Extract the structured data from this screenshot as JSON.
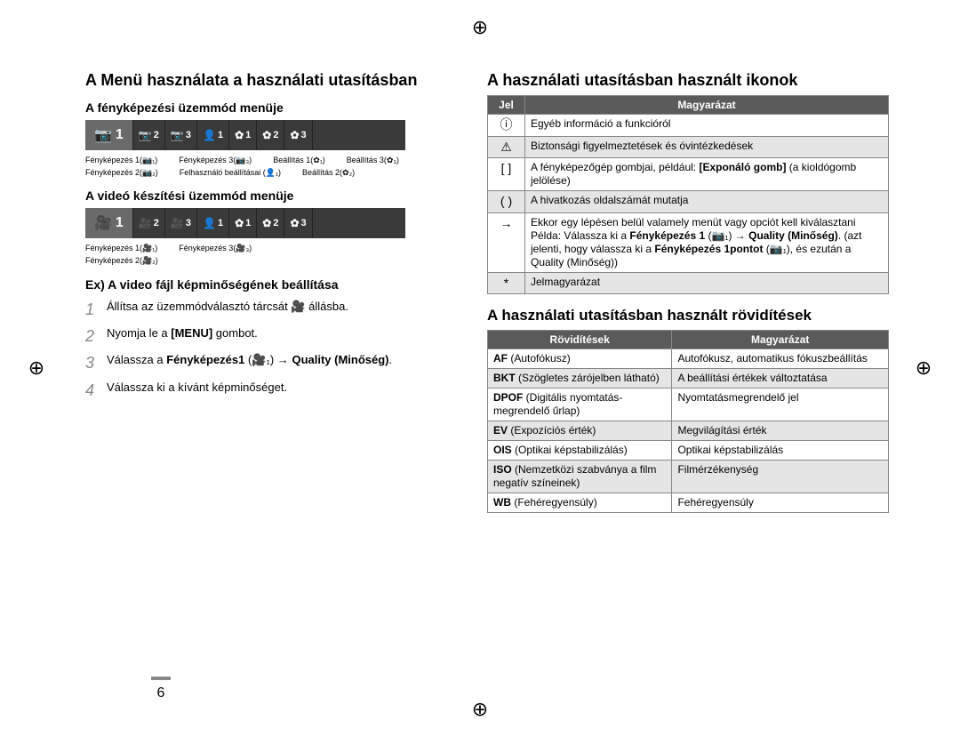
{
  "page_number": "6",
  "left": {
    "title": "A Menü használata a használati utasításban",
    "section_photo": "A fényképezési üzemmód menüje",
    "section_video": "A videó készítési üzemmód menüje",
    "photo_tabs": [
      {
        "icon": "cam",
        "n": "1",
        "first": true
      },
      {
        "icon": "cam",
        "n": "2"
      },
      {
        "icon": "cam",
        "n": "3"
      },
      {
        "icon": "person",
        "n": "1"
      },
      {
        "icon": "gear",
        "n": "1"
      },
      {
        "icon": "gear",
        "n": "2"
      },
      {
        "icon": "gear",
        "n": "3"
      }
    ],
    "photo_labels_row1": [
      "Fényképezés 1(📷₁)",
      "Fényképezés 3(📷₃)",
      "Beállítás 1(✿₁)",
      "Beállítás 3(✿₃)"
    ],
    "photo_labels_row2": [
      "Fényképezés 2(📷₂)",
      "Felhasználó beállításai (👤₁)",
      "Beállítás 2(✿₂)"
    ],
    "video_tabs": [
      {
        "icon": "vid",
        "n": "1",
        "first": true
      },
      {
        "icon": "vid",
        "n": "2"
      },
      {
        "icon": "vid",
        "n": "3"
      },
      {
        "icon": "person",
        "n": "1"
      },
      {
        "icon": "gear",
        "n": "1"
      },
      {
        "icon": "gear",
        "n": "2"
      },
      {
        "icon": "gear",
        "n": "3"
      }
    ],
    "video_labels_row1": [
      "Fényképezés 1(🎥₁)",
      "Fényképezés 3(🎥₃)"
    ],
    "video_labels_row2": [
      "Fényképezés 2(🎥₂)"
    ],
    "example_heading": "Ex) A video fájl képminőségének beállítása",
    "steps": [
      "Állítsa az üzemmódválasztó tárcsát 🎥 állásba.",
      "Nyomja le a [MENU] gombot.",
      "Válassza a Fényképezés1 (🎥₁) → Quality (Minőség).",
      "Válassza ki a kívánt képminőséget."
    ]
  },
  "right": {
    "icons_title": "A használati utasításban használt ikonok",
    "icons_headers": [
      "Jel",
      "Magyarázat"
    ],
    "icons_rows": [
      {
        "jel": "ⓘ",
        "text": "Egyéb információ a funkcióról"
      },
      {
        "jel": "⚠",
        "text": "Biztonsági figyelmeztetések és óvintézkedések"
      },
      {
        "jel": "[ ]",
        "text": "A fényképezőgép gombjai, például: [Exponáló gomb] (a kioldógomb jelölése)"
      },
      {
        "jel": "( )",
        "text": "A hivatkozás oldalszámát mutatja"
      },
      {
        "jel": "→",
        "text": "Ekkor egy lépésen belül valamely menüt vagy opciót kell kiválasztani\nPélda: Válassza ki a Fényképezés 1 (📷₁) → Quality (Minőség). (azt jelenti, hogy válassza ki a Fényképezés 1pontot (📷₁), és ezután a Quality (Minőség))"
      },
      {
        "jel": "*",
        "text": "Jelmagyarázat"
      }
    ],
    "abbr_title": "A használati utasításban használt rövidítések",
    "abbr_headers": [
      "Rövidítések",
      "Magyarázat"
    ],
    "abbr_rows": [
      {
        "a": "AF (Autofókusz)",
        "b": "Autofókusz, automatikus fókuszbeállítás"
      },
      {
        "a": "BKT (Szögletes zárójelben látható)",
        "b": "A beállítási értékek változtatása"
      },
      {
        "a": "DPOF (Digitális nyomtatás-megrendelő űrlap)",
        "b": "Nyomtatásmegrendelő jel"
      },
      {
        "a": "EV (Expozíciós érték)",
        "b": "Megvilágítási érték"
      },
      {
        "a": "OIS (Optikai képstabilizálás)",
        "b": "Optikai képstabilizálás"
      },
      {
        "a": "ISO (Nemzetközi szabványa a film negatív színeinek)",
        "b": "Filmérzékenység"
      },
      {
        "a": "WB (Fehéregyensúly)",
        "b": "Fehéregyensúly"
      }
    ]
  },
  "colors": {
    "header_bg": "#5a5a5a",
    "tab_bg": "#3a3a3a",
    "tab_active_bg": "#6a6a6a",
    "alt_row": "#e5e5e5",
    "border": "#888888"
  }
}
